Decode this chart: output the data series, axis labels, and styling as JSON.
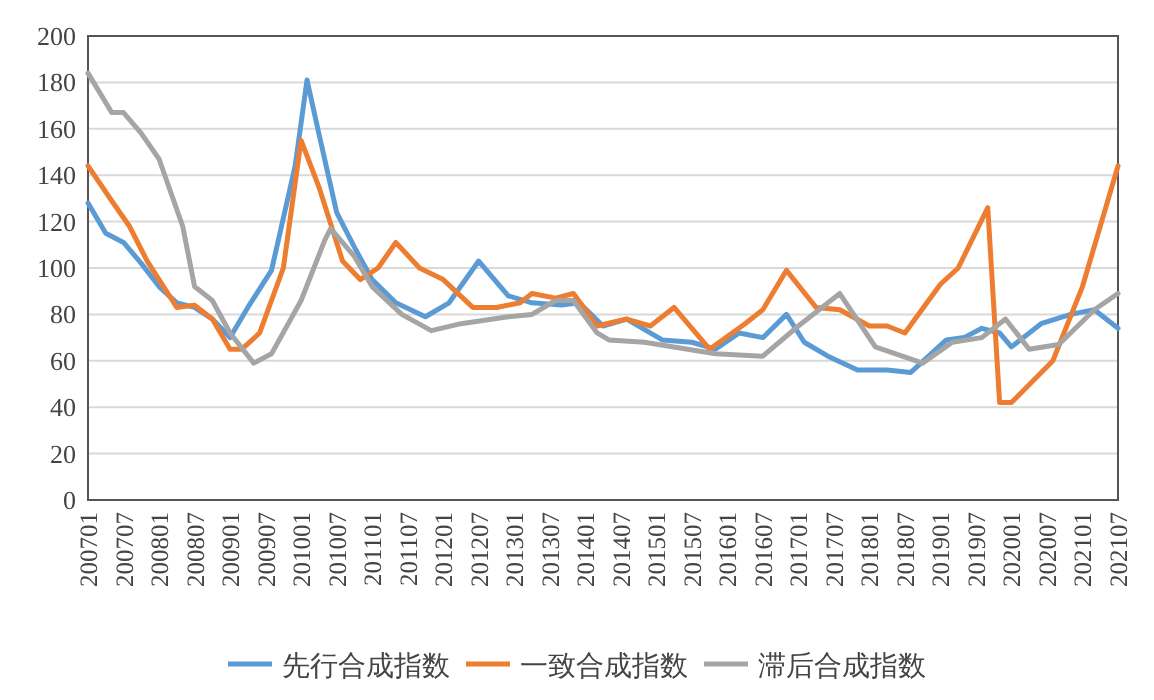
{
  "chart_data": {
    "type": "line",
    "xlim": [
      "2007-01",
      "2021-07"
    ],
    "ylim": [
      0,
      200
    ],
    "yticks": [
      0,
      20,
      40,
      60,
      80,
      100,
      120,
      140,
      160,
      180,
      200
    ],
    "xticks": [
      {
        "value": "2007-01",
        "label": "200701"
      },
      {
        "value": "2007-07",
        "label": "200707"
      },
      {
        "value": "2008-01",
        "label": "200801"
      },
      {
        "value": "2008-07",
        "label": "200807"
      },
      {
        "value": "2009-01",
        "label": "200901"
      },
      {
        "value": "2009-07",
        "label": "200907"
      },
      {
        "value": "2010-01",
        "label": "201001"
      },
      {
        "value": "2010-07",
        "label": "201007"
      },
      {
        "value": "2011-01",
        "label": "201101"
      },
      {
        "value": "2011-07",
        "label": "201107"
      },
      {
        "value": "2012-01",
        "label": "201201"
      },
      {
        "value": "2012-07",
        "label": "201207"
      },
      {
        "value": "2013-01",
        "label": "201301"
      },
      {
        "value": "2013-07",
        "label": "201307"
      },
      {
        "value": "2014-01",
        "label": "201401"
      },
      {
        "value": "2014-07",
        "label": "201407"
      },
      {
        "value": "2015-01",
        "label": "201501"
      },
      {
        "value": "2015-07",
        "label": "201507"
      },
      {
        "value": "2016-01",
        "label": "201601"
      },
      {
        "value": "2016-07",
        "label": "201607"
      },
      {
        "value": "2017-01",
        "label": "201701"
      },
      {
        "value": "2017-07",
        "label": "201707"
      },
      {
        "value": "2018-01",
        "label": "201801"
      },
      {
        "value": "2018-07",
        "label": "201807"
      },
      {
        "value": "2019-01",
        "label": "201901"
      },
      {
        "value": "2019-07",
        "label": "201907"
      },
      {
        "value": "2020-01",
        "label": "202001"
      },
      {
        "value": "2020-07",
        "label": "202007"
      },
      {
        "value": "2021-01",
        "label": "202101"
      },
      {
        "value": "2021-07",
        "label": "202107"
      }
    ],
    "grid": "y",
    "legend": "bottom",
    "series": [
      {
        "name": "先行合成指数",
        "color": "#5b9bd5",
        "x": [
          "2007-01",
          "2007-04",
          "2007-07",
          "2007-10",
          "2008-01",
          "2008-04",
          "2008-07",
          "2008-10",
          "2009-01",
          "2009-04",
          "2009-08",
          "2009-12",
          "2010-02",
          "2010-04",
          "2010-07",
          "2010-10",
          "2011-01",
          "2011-05",
          "2011-10",
          "2012-02",
          "2012-07",
          "2012-12",
          "2013-04",
          "2013-09",
          "2013-12",
          "2014-04",
          "2014-08",
          "2015-02",
          "2015-07",
          "2015-11",
          "2016-03",
          "2016-07",
          "2016-11",
          "2017-02",
          "2017-06",
          "2017-11",
          "2018-04",
          "2018-08",
          "2019-02",
          "2019-05",
          "2019-08",
          "2019-11",
          "2020-01",
          "2020-06",
          "2020-11",
          "2021-03",
          "2021-07"
        ],
        "values": [
          128,
          115,
          111,
          102,
          92,
          85,
          83,
          78,
          70,
          83,
          99,
          144,
          181,
          158,
          124,
          109,
          95,
          85,
          79,
          85,
          103,
          88,
          85,
          84,
          85,
          75,
          78,
          69,
          68,
          65,
          72,
          70,
          80,
          68,
          62,
          56,
          56,
          55,
          69,
          70,
          74,
          72,
          66,
          76,
          80,
          82,
          74
        ]
      },
      {
        "name": "一致合成指数",
        "color": "#ed7d31",
        "x": [
          "2007-01",
          "2007-05",
          "2007-08",
          "2007-11",
          "2008-04",
          "2008-07",
          "2008-10",
          "2009-01",
          "2009-03",
          "2009-06",
          "2009-10",
          "2010-01",
          "2010-04",
          "2010-08",
          "2010-11",
          "2011-02",
          "2011-05",
          "2011-09",
          "2012-01",
          "2012-06",
          "2012-10",
          "2013-02",
          "2013-04",
          "2013-08",
          "2013-11",
          "2014-03",
          "2014-08",
          "2014-12",
          "2015-04",
          "2015-10",
          "2016-04",
          "2016-07",
          "2016-11",
          "2017-04",
          "2017-08",
          "2018-01",
          "2018-04",
          "2018-07",
          "2019-01",
          "2019-04",
          "2019-09",
          "2019-11",
          "2020-01",
          "2020-08",
          "2021-01",
          "2021-07"
        ],
        "values": [
          144,
          129,
          118,
          103,
          83,
          84,
          78,
          65,
          65,
          72,
          100,
          155,
          135,
          103,
          95,
          100,
          111,
          100,
          95,
          83,
          83,
          85,
          89,
          87,
          89,
          75,
          78,
          75,
          83,
          65,
          76,
          82,
          99,
          83,
          82,
          75,
          75,
          72,
          93,
          100,
          126,
          42,
          42,
          60,
          92,
          144
        ]
      },
      {
        "name": "滞后合成指数",
        "color": "#a5a5a5",
        "x": [
          "2007-01",
          "2007-05",
          "2007-07",
          "2007-10",
          "2008-01",
          "2008-05",
          "2008-07",
          "2008-10",
          "2009-01",
          "2009-05",
          "2009-08",
          "2010-01",
          "2010-05",
          "2010-06",
          "2010-10",
          "2011-01",
          "2011-06",
          "2011-11",
          "2012-04",
          "2012-12",
          "2013-04",
          "2013-08",
          "2013-11",
          "2014-03",
          "2014-05",
          "2014-11",
          "2015-11",
          "2016-07",
          "2017-01",
          "2017-08",
          "2018-02",
          "2018-10",
          "2019-03",
          "2019-08",
          "2019-12",
          "2020-04",
          "2020-09",
          "2021-03",
          "2021-07"
        ],
        "values": [
          184,
          167,
          167,
          158,
          147,
          118,
          92,
          86,
          72,
          59,
          63,
          86,
          112,
          117,
          105,
          92,
          80,
          73,
          76,
          79,
          80,
          86,
          86,
          72,
          69,
          68,
          63,
          62,
          75,
          89,
          66,
          59,
          68,
          70,
          78,
          65,
          67,
          82,
          89
        ]
      }
    ]
  }
}
